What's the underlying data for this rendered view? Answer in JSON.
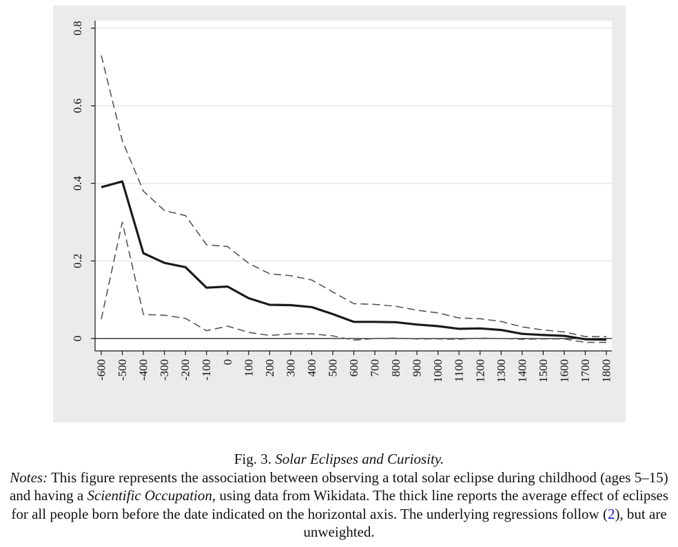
{
  "chart_data": {
    "type": "line",
    "x": [
      -600,
      -500,
      -400,
      -300,
      -200,
      -100,
      0,
      100,
      200,
      300,
      400,
      500,
      600,
      700,
      800,
      900,
      1000,
      1100,
      1200,
      1300,
      1400,
      1500,
      1600,
      1700,
      1800
    ],
    "x_ticks": [
      "-600",
      "-500",
      "-400",
      "-300",
      "-200",
      "-100",
      "0",
      "100",
      "200",
      "300",
      "400",
      "500",
      "600",
      "700",
      "800",
      "900",
      "1000",
      "1100",
      "1200",
      "1300",
      "1400",
      "1500",
      "1600",
      "1700",
      "1800"
    ],
    "y_ticks": [
      "0",
      "0.2",
      "0.4",
      "0.6",
      "0.8"
    ],
    "ylim": [
      0,
      0.8
    ],
    "grid": true,
    "series": [
      {
        "style": "solid-thick",
        "color": "#1a1a1a",
        "values": [
          0.39,
          0.405,
          0.22,
          0.195,
          0.184,
          0.131,
          0.134,
          0.104,
          0.087,
          0.086,
          0.081,
          0.063,
          0.043,
          0.043,
          0.042,
          0.036,
          0.032,
          0.025,
          0.026,
          0.022,
          0.012,
          0.009,
          0.007,
          -0.002,
          -0.003
        ]
      },
      {
        "style": "dashed",
        "color": "#555555",
        "values": [
          0.73,
          0.51,
          0.38,
          0.33,
          0.317,
          0.242,
          0.237,
          0.194,
          0.167,
          0.162,
          0.151,
          0.12,
          0.09,
          0.088,
          0.083,
          0.073,
          0.066,
          0.053,
          0.051,
          0.044,
          0.03,
          0.022,
          0.017,
          0.005,
          0.005
        ]
      },
      {
        "style": "dashed",
        "color": "#555555",
        "values": [
          0.05,
          0.3,
          0.062,
          0.06,
          0.052,
          0.02,
          0.032,
          0.016,
          0.008,
          0.012,
          0.012,
          0.007,
          -0.004,
          0.0,
          0.001,
          -0.001,
          -0.001,
          -0.002,
          0.001,
          0.0,
          -0.002,
          -0.001,
          -0.001,
          -0.01,
          -0.01
        ]
      }
    ]
  },
  "caption": {
    "fig_label": "Fig. 3.",
    "fig_title": "Solar Eclipses and Curiosity.",
    "notes_label": "Notes:",
    "notes_part1": " This figure represents the association between observing a total solar eclipse during childhood (ages 5–15) and having a ",
    "notes_italic": "Scientific Occupation",
    "notes_part2": ", using data from Wikidata. The thick line reports the average effect of eclipses for all people born before the date indicated on the horizontal axis. The underlying regressions follow (",
    "notes_ref": "2",
    "notes_part3": "), but are unweighted."
  }
}
